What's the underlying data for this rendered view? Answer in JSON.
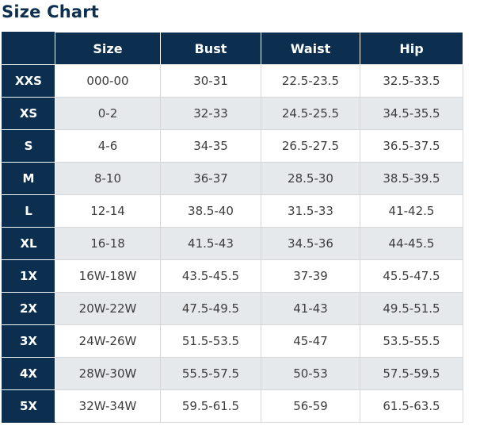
{
  "title": "Size Chart",
  "colors": {
    "header_bg": "#0d2f4f",
    "header_text": "#ffffff",
    "stripe": "#e6e9ec",
    "body_text": "#3d3d3d"
  },
  "table": {
    "columns": [
      "",
      "Size",
      "Bust",
      "Waist",
      "Hip"
    ],
    "rows": [
      {
        "label": "XXS",
        "size": "000-00",
        "bust": "30-31",
        "waist": "22.5-23.5",
        "hip": "32.5-33.5"
      },
      {
        "label": "XS",
        "size": "0-2",
        "bust": "32-33",
        "waist": "24.5-25.5",
        "hip": "34.5-35.5"
      },
      {
        "label": "S",
        "size": "4-6",
        "bust": "34-35",
        "waist": "26.5-27.5",
        "hip": "36.5-37.5"
      },
      {
        "label": "M",
        "size": "8-10",
        "bust": "36-37",
        "waist": "28.5-30",
        "hip": "38.5-39.5"
      },
      {
        "label": "L",
        "size": "12-14",
        "bust": "38.5-40",
        "waist": "31.5-33",
        "hip": "41-42.5"
      },
      {
        "label": "XL",
        "size": "16-18",
        "bust": "41.5-43",
        "waist": "34.5-36",
        "hip": "44-45.5"
      },
      {
        "label": "1X",
        "size": "16W-18W",
        "bust": "43.5-45.5",
        "waist": "37-39",
        "hip": "45.5-47.5"
      },
      {
        "label": "2X",
        "size": "20W-22W",
        "bust": "47.5-49.5",
        "waist": "41-43",
        "hip": "49.5-51.5"
      },
      {
        "label": "3X",
        "size": "24W-26W",
        "bust": "51.5-53.5",
        "waist": "45-47",
        "hip": "53.5-55.5"
      },
      {
        "label": "4X",
        "size": "28W-30W",
        "bust": "55.5-57.5",
        "waist": "50-53",
        "hip": "57.5-59.5"
      },
      {
        "label": "5X",
        "size": "32W-34W",
        "bust": "59.5-61.5",
        "waist": "56-59",
        "hip": "61.5-63.5"
      }
    ]
  }
}
